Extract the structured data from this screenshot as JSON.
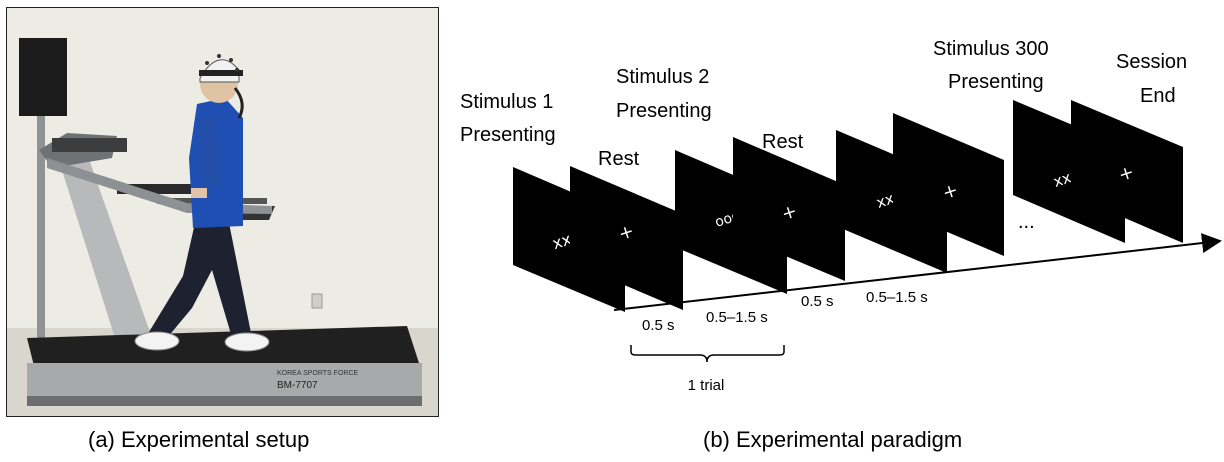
{
  "captions": {
    "a": "(a) Experimental setup",
    "b": "(b) Experimental paradigm"
  },
  "photo": {
    "treadmill_brand": "KOREA SPORTS FORCE",
    "treadmill_model": "BM-7707"
  },
  "paradigm": {
    "stim1": [
      "Stimulus 1",
      "Presenting"
    ],
    "rest1": "Rest",
    "stim2": [
      "Stimulus 2",
      "Presenting"
    ],
    "rest2": "Rest",
    "stim300": [
      "Stimulus 300",
      "Presenting"
    ],
    "session_end": [
      "Session",
      "End"
    ],
    "screens": {
      "stim1": "xxx",
      "rest1": "+",
      "stim2": "ooo",
      "rest2": "+",
      "stim3": "xxx",
      "rest3": "+",
      "stim300": "xxx",
      "end": "+"
    },
    "ellipsis": "...",
    "times": {
      "t1": "0.5 s",
      "t2": "0.5–1.5 s",
      "t3": "0.5 s",
      "t4": "0.5–1.5 s"
    },
    "trial_label": "1 trial"
  }
}
